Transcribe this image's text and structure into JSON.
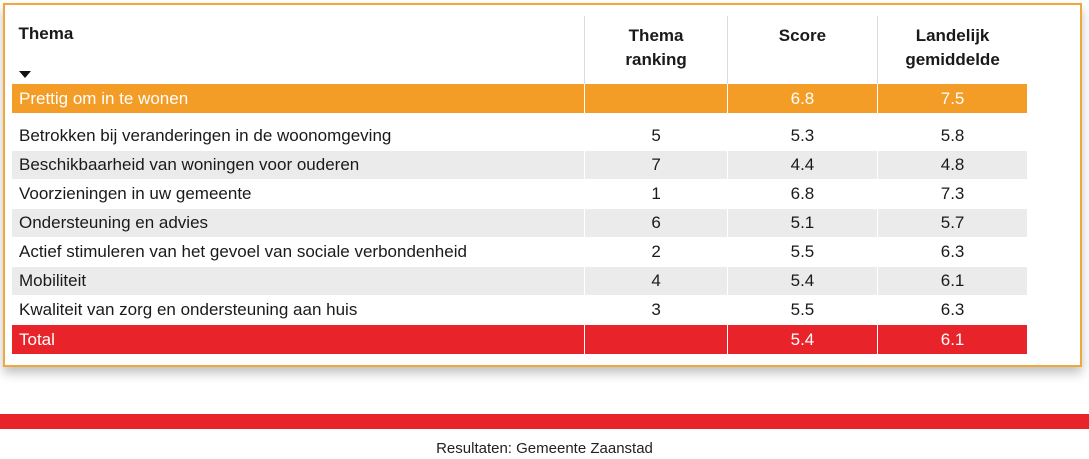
{
  "table": {
    "headers": {
      "thema": "Thema",
      "ranking_line1": "Thema",
      "ranking_line2": "ranking",
      "score": "Score",
      "landelijk_line1": "Landelijk",
      "landelijk_line2": "gemiddelde"
    },
    "highlight_row": {
      "thema": "Prettig om in te wonen",
      "ranking": "",
      "score": "6.8",
      "landelijk": "7.5"
    },
    "rows": [
      {
        "thema": "Betrokken bij veranderingen in de woonomgeving",
        "ranking": "5",
        "score": "5.3",
        "landelijk": "5.8"
      },
      {
        "thema": "Beschikbaarheid van woningen voor ouderen",
        "ranking": "7",
        "score": "4.4",
        "landelijk": "4.8"
      },
      {
        "thema": "Voorzieningen in uw gemeente",
        "ranking": "1",
        "score": "6.8",
        "landelijk": "7.3"
      },
      {
        "thema": "Ondersteuning en advies",
        "ranking": "6",
        "score": "5.1",
        "landelijk": "5.7"
      },
      {
        "thema": "Actief stimuleren van het gevoel van sociale verbondenheid",
        "ranking": "2",
        "score": "5.5",
        "landelijk": "6.3"
      },
      {
        "thema": "Mobiliteit",
        "ranking": "4",
        "score": "5.4",
        "landelijk": "6.1"
      },
      {
        "thema": "Kwaliteit van zorg en ondersteuning aan huis",
        "ranking": "3",
        "score": "5.5",
        "landelijk": "6.3"
      }
    ],
    "total_row": {
      "thema": "Total",
      "ranking": "",
      "score": "5.4",
      "landelijk": "6.1"
    },
    "sort_icon": "caret-down-icon"
  },
  "footer": {
    "text": "Resultaten: Gemeente Zaanstad"
  },
  "colors": {
    "orange": "#f39c26",
    "red": "#e8232a",
    "border": "#f0a83c",
    "alt_row": "#ebebeb"
  }
}
